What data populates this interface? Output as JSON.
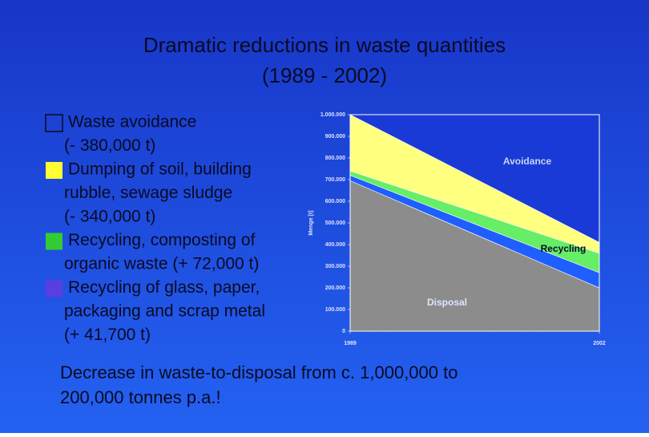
{
  "slide": {
    "title": "Dramatic reductions in waste quantities",
    "subtitle": "(1989 - 2002)",
    "bullets": [
      {
        "color": "none",
        "lines": [
          "Waste avoidance",
          "(- 380,000 t)"
        ]
      },
      {
        "color": "#ffff33",
        "lines": [
          "Dumping of soil, building",
          "rubble, sewage sludge",
          "(- 340,000 t)"
        ]
      },
      {
        "color": "#33cc33",
        "lines": [
          "Recycling, composting of",
          "organic waste (+ 72,000 t)"
        ]
      },
      {
        "color": "#5a3ee0",
        "lines": [
          "Recycling of glass, paper,",
          "packaging and scrap metal",
          "(+ 41,700 t)"
        ]
      }
    ],
    "footer": [
      "Decrease in waste-to-disposal  from c. 1,000,000 to",
      "200,000 tonnes p.a.!"
    ]
  },
  "chart_data": {
    "type": "stacked-area",
    "y_label": "Menge [t]",
    "x": [
      1989,
      2002
    ],
    "xlim": [
      1989,
      2002
    ],
    "xticks": [
      1989,
      2002
    ],
    "ylim": [
      0,
      1000000
    ],
    "yticks": [
      0,
      {
        "value": 100000,
        "label": "100.000"
      },
      {
        "value": 200000,
        "label": "200.000"
      },
      {
        "value": 300000,
        "label": "300.000"
      },
      {
        "value": 400000,
        "label": "400.000"
      },
      {
        "value": 500000,
        "label": "500.000"
      },
      {
        "value": 600000,
        "label": "600.000"
      },
      {
        "value": 700000,
        "label": "700.000"
      },
      {
        "value": 800000,
        "label": "800.000"
      },
      {
        "value": 900000,
        "label": "900.000"
      },
      {
        "value": 1000000,
        "label": "1.000.000"
      }
    ],
    "series": [
      {
        "color": "#8c8c8c",
        "values": [
          695000,
          200000
        ]
      },
      {
        "color": "#1f5fff",
        "values": [
          25000,
          70000
        ]
      },
      {
        "color": "#66ee66",
        "values": [
          20000,
          90000
        ]
      },
      {
        "color": "#ffff80",
        "values": [
          260000,
          50000
        ]
      }
    ],
    "annotations": [
      "Avoidance",
      "Recycling",
      "Disposal"
    ]
  }
}
